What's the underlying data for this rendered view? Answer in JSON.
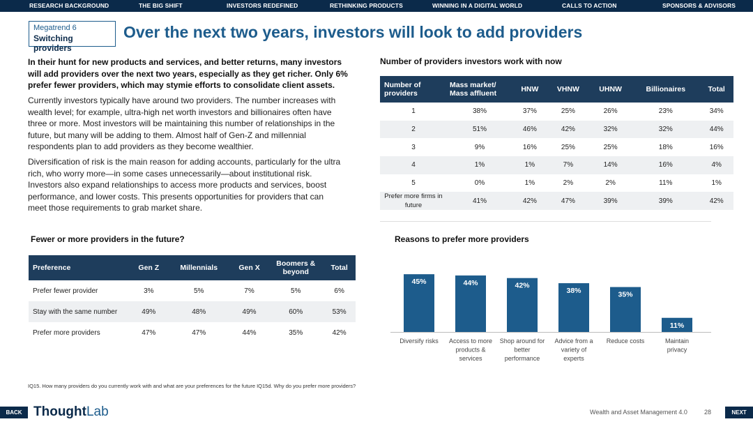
{
  "nav": {
    "items": [
      "RESEARCH BACKGROUND",
      "THE BIG SHIFT",
      "INVESTORS REDEFINED",
      "RETHINKING PRODUCTS",
      "WINNING IN A DIGITAL WORLD",
      "CALLS TO ACTION",
      "SPONSORS & ADVISORS"
    ]
  },
  "badge": {
    "line1": "Megatrend 6",
    "line2": "Switching providers"
  },
  "title": "Over the next two years, investors will look to add providers",
  "lede": "In their hunt for new products and services, and better returns, many investors will add providers over the next two years, especially as they get richer. Only 6% prefer fewer providers, which may stymie efforts to consolidate client assets.",
  "para1": "Currently investors typically have around two providers. The number increases with wealth level; for example, ultra-high net worth investors and billionaires often have three or more. Most investors will be maintaining this number of relationships in the future, but many will be adding to them. Almost half of Gen-Z and millennial respondents plan to add providers as they become wealthier.",
  "para2": "Diversification of risk is the main reason for adding accounts, particularly for the ultra rich, who worry more—in some cases unnecessarily—about institutional risk. Investors also expand relationships to access more products and services, boost performance, and lower costs. This presents opportunities for providers that can meet those requirements to grab market share.",
  "table1": {
    "title": "Number of providers investors work with now",
    "headers": [
      "Number of providers",
      "Mass market/ Mass affluent",
      "HNW",
      "VHNW",
      "UHNW",
      "Billionaires",
      "Total"
    ],
    "rows": [
      [
        "1",
        "38%",
        "37%",
        "25%",
        "26%",
        "23%",
        "34%"
      ],
      [
        "2",
        "51%",
        "46%",
        "42%",
        "32%",
        "32%",
        "44%"
      ],
      [
        "3",
        "9%",
        "16%",
        "25%",
        "25%",
        "18%",
        "16%"
      ],
      [
        "4",
        "1%",
        "1%",
        "7%",
        "14%",
        "16%",
        "4%"
      ],
      [
        "5",
        "0%",
        "1%",
        "2%",
        "2%",
        "11%",
        "1%"
      ],
      [
        "Prefer more firms in future",
        "41%",
        "42%",
        "47%",
        "39%",
        "39%",
        "42%"
      ]
    ]
  },
  "table2": {
    "title": "Fewer or more providers in the future?",
    "headers": [
      "Preference",
      "Gen Z",
      "Millennials",
      "Gen X",
      "Boomers & beyond",
      "Total"
    ],
    "rows": [
      [
        "Prefer fewer provider",
        "3%",
        "5%",
        "7%",
        "5%",
        "6%"
      ],
      [
        "Stay with the same number",
        "49%",
        "48%",
        "49%",
        "60%",
        "53%"
      ],
      [
        "Prefer more providers",
        "47%",
        "47%",
        "44%",
        "35%",
        "42%"
      ]
    ]
  },
  "chart_data": {
    "type": "bar",
    "title": "Reasons to prefer more providers",
    "categories": [
      "Diversify risks",
      "Access to more products & services",
      "Shop around for better performance",
      "Advice from a variety of experts",
      "Reduce costs",
      "Maintain privacy"
    ],
    "values": [
      45,
      44,
      42,
      38,
      35,
      11
    ],
    "labels": [
      "45%",
      "44%",
      "42%",
      "38%",
      "35%",
      "11%"
    ],
    "ylim": [
      0,
      50
    ],
    "bar_color": "#1d5c8c",
    "xlabel": "",
    "ylabel": ""
  },
  "footnote": "IQ15. How many providers do you currently work with and what are your preferences for the future  IQ15d. Why do you prefer more providers?",
  "footer": {
    "back": "BACK",
    "next": "NEXT",
    "logo_part1": "Thought",
    "logo_part2": "Lab",
    "report": "Wealth and Asset Management 4.0",
    "page": "28"
  }
}
